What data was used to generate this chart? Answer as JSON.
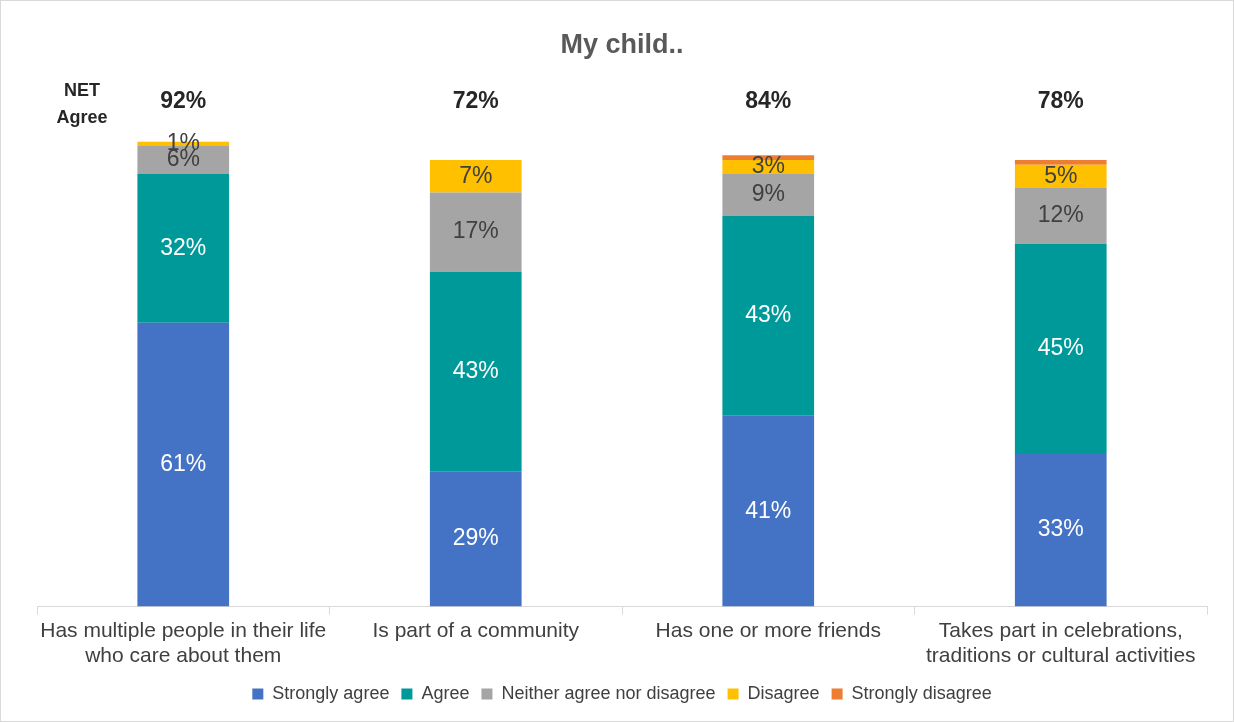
{
  "chart_data": {
    "type": "bar",
    "stacked": true,
    "title": "My child..",
    "categories": [
      "Has multiple people in their life who care about them",
      "Is part of a community",
      "Has one or more friends",
      "Takes part in celebrations, traditions or cultural activities"
    ],
    "series": [
      {
        "name": "Strongly agree",
        "color": "#4472c4",
        "values": [
          61,
          29,
          41,
          33
        ],
        "value_labels": [
          "61%",
          "29%",
          "41%",
          "33%"
        ]
      },
      {
        "name": "Agree",
        "color": "#009999",
        "values": [
          32,
          43,
          43,
          45
        ],
        "value_labels": [
          "32%",
          "43%",
          "43%",
          "45%"
        ]
      },
      {
        "name": "Neither agree nor disagree",
        "color": "#a5a5a5",
        "values": [
          6,
          17,
          9,
          12
        ],
        "value_labels": [
          "6%",
          "17%",
          "9%",
          "12%"
        ]
      },
      {
        "name": "Disagree",
        "color": "#ffc000",
        "values": [
          1,
          7,
          3,
          5
        ],
        "value_labels": [
          "1%",
          "7%",
          "3%",
          "5%"
        ]
      },
      {
        "name": "Strongly disagree",
        "color": "#ed7d31",
        "values": [
          0,
          0,
          1,
          1
        ],
        "value_labels": [
          null,
          null,
          null,
          null
        ]
      }
    ],
    "annotations": [
      "NET Agree",
      "92%",
      "72%",
      "84%",
      "78%"
    ],
    "legend": "bottom",
    "grid": false
  }
}
